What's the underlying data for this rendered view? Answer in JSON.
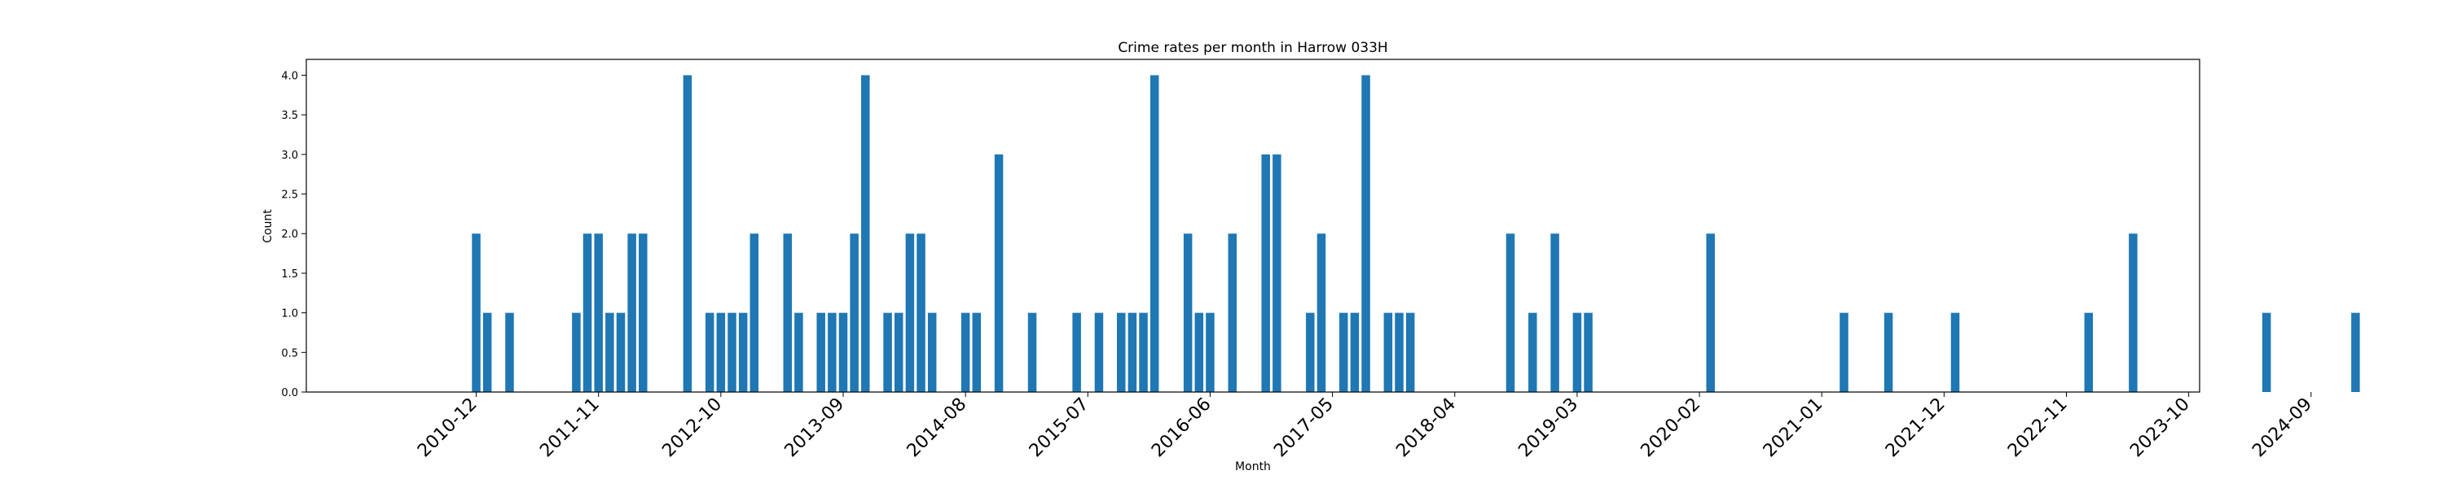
{
  "chart_data": {
    "type": "bar",
    "title": "Crime rates per month in Harrow 033H",
    "xlabel": "Month",
    "ylabel": "Count",
    "ylim": [
      0,
      4.2
    ],
    "yticks": [
      "0.0",
      "0.5",
      "1.0",
      "1.5",
      "2.0",
      "2.5",
      "3.0",
      "3.5",
      "4.0"
    ],
    "xticks": [
      "2010-12",
      "2011-11",
      "2012-10",
      "2013-09",
      "2014-08",
      "2015-07",
      "2016-06",
      "2017-05",
      "2018-04",
      "2019-03",
      "2020-02",
      "2021-01",
      "2021-12",
      "2022-11",
      "2023-10",
      "2024-09"
    ],
    "color": "#1f77b4",
    "grid": false,
    "x": [
      "2010-12",
      "2011-01",
      "2011-03",
      "2011-09",
      "2011-10",
      "2011-11",
      "2011-12",
      "2012-01",
      "2012-02",
      "2012-03",
      "2012-07",
      "2012-09",
      "2012-10",
      "2012-11",
      "2012-12",
      "2013-01",
      "2013-04",
      "2013-05",
      "2013-07",
      "2013-08",
      "2013-09",
      "2013-10",
      "2013-11",
      "2014-01",
      "2014-02",
      "2014-03",
      "2014-04",
      "2014-05",
      "2014-08",
      "2014-09",
      "2014-11",
      "2015-02",
      "2015-06",
      "2015-08",
      "2015-10",
      "2015-11",
      "2015-12",
      "2016-01",
      "2016-04",
      "2016-05",
      "2016-06",
      "2016-08",
      "2016-11",
      "2016-12",
      "2017-03",
      "2017-04",
      "2017-06",
      "2017-07",
      "2017-08",
      "2017-10",
      "2017-11",
      "2017-12",
      "2018-09",
      "2018-11",
      "2019-01",
      "2019-03",
      "2019-04",
      "2020-03",
      "2021-03",
      "2021-07",
      "2022-01",
      "2023-01",
      "2023-05",
      "2024-05",
      "2025-01"
    ],
    "values": [
      2,
      1,
      1,
      1,
      2,
      2,
      1,
      1,
      2,
      2,
      4,
      1,
      1,
      1,
      1,
      2,
      2,
      1,
      1,
      1,
      1,
      2,
      4,
      1,
      1,
      2,
      2,
      1,
      1,
      1,
      3,
      1,
      1,
      1,
      1,
      1,
      1,
      4,
      2,
      1,
      1,
      2,
      3,
      3,
      1,
      2,
      1,
      1,
      4,
      1,
      1,
      1,
      2,
      1,
      2,
      1,
      1,
      2,
      1,
      1,
      1,
      1,
      2,
      1,
      1
    ]
  }
}
